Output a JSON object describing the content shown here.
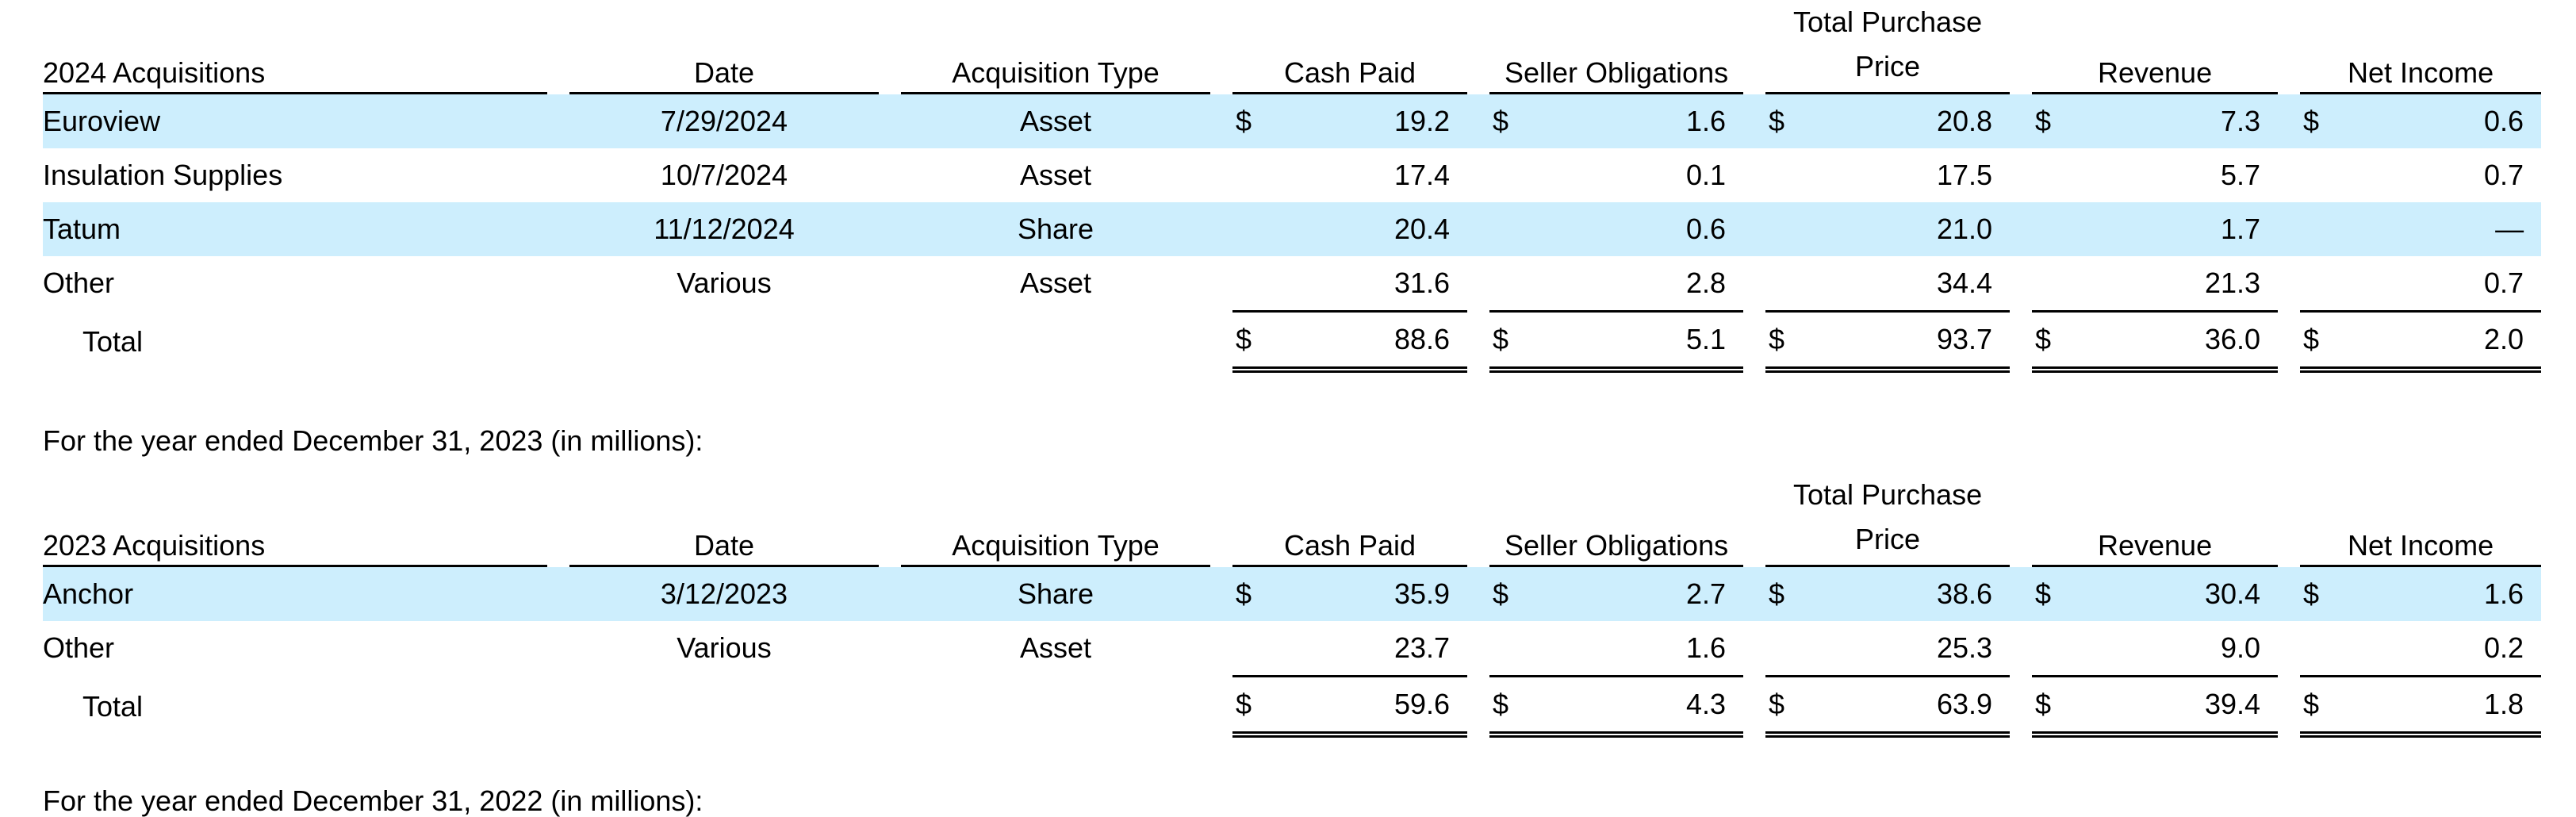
{
  "tables": [
    {
      "headers": {
        "name": "2024 Acquisitions",
        "date": "Date",
        "type": "Acquisition Type",
        "cash": "Cash Paid",
        "seller": "Seller Obligations",
        "price_line1": "Total Purchase",
        "price_line2": "Price",
        "revenue": "Revenue",
        "net": "Net Income"
      },
      "rows": [
        {
          "name": "Euroview",
          "date": "7/29/2024",
          "type": "Asset",
          "cash": "19.2",
          "seller": "1.6",
          "price": "20.8",
          "revenue": "7.3",
          "net": "0.6"
        },
        {
          "name": "Insulation Supplies",
          "date": "10/7/2024",
          "type": "Asset",
          "cash": "17.4",
          "seller": "0.1",
          "price": "17.5",
          "revenue": "5.7",
          "net": "0.7"
        },
        {
          "name": "Tatum",
          "date": "11/12/2024",
          "type": "Share",
          "cash": "20.4",
          "seller": "0.6",
          "price": "21.0",
          "revenue": "1.7",
          "net": "—"
        },
        {
          "name": "Other",
          "date": "Various",
          "type": "Asset",
          "cash": "31.6",
          "seller": "2.8",
          "price": "34.4",
          "revenue": "21.3",
          "net": "0.7"
        }
      ],
      "total": {
        "name": "Total",
        "cash": "88.6",
        "seller": "5.1",
        "price": "93.7",
        "revenue": "36.0",
        "net": "2.0"
      }
    },
    {
      "caption": "For the year ended December 31, 2023 (in millions):",
      "headers": {
        "name": "2023 Acquisitions",
        "date": "Date",
        "type": "Acquisition Type",
        "cash": "Cash Paid",
        "seller": "Seller Obligations",
        "price_line1": "Total Purchase",
        "price_line2": "Price",
        "revenue": "Revenue",
        "net": "Net Income"
      },
      "rows": [
        {
          "name": "Anchor",
          "date": "3/12/2023",
          "type": "Share",
          "cash": "35.9",
          "seller": "2.7",
          "price": "38.6",
          "revenue": "30.4",
          "net": "1.6"
        },
        {
          "name": "Other",
          "date": "Various",
          "type": "Asset",
          "cash": "23.7",
          "seller": "1.6",
          "price": "25.3",
          "revenue": "9.0",
          "net": "0.2"
        }
      ],
      "total": {
        "name": "Total",
        "cash": "59.6",
        "seller": "4.3",
        "price": "63.9",
        "revenue": "39.4",
        "net": "1.8"
      }
    }
  ],
  "currency_symbol": "$",
  "footer_caption": "For the year ended December 31, 2022 (in millions):",
  "colors": {
    "row_shade": "#cdeefd",
    "rule": "#000000"
  }
}
